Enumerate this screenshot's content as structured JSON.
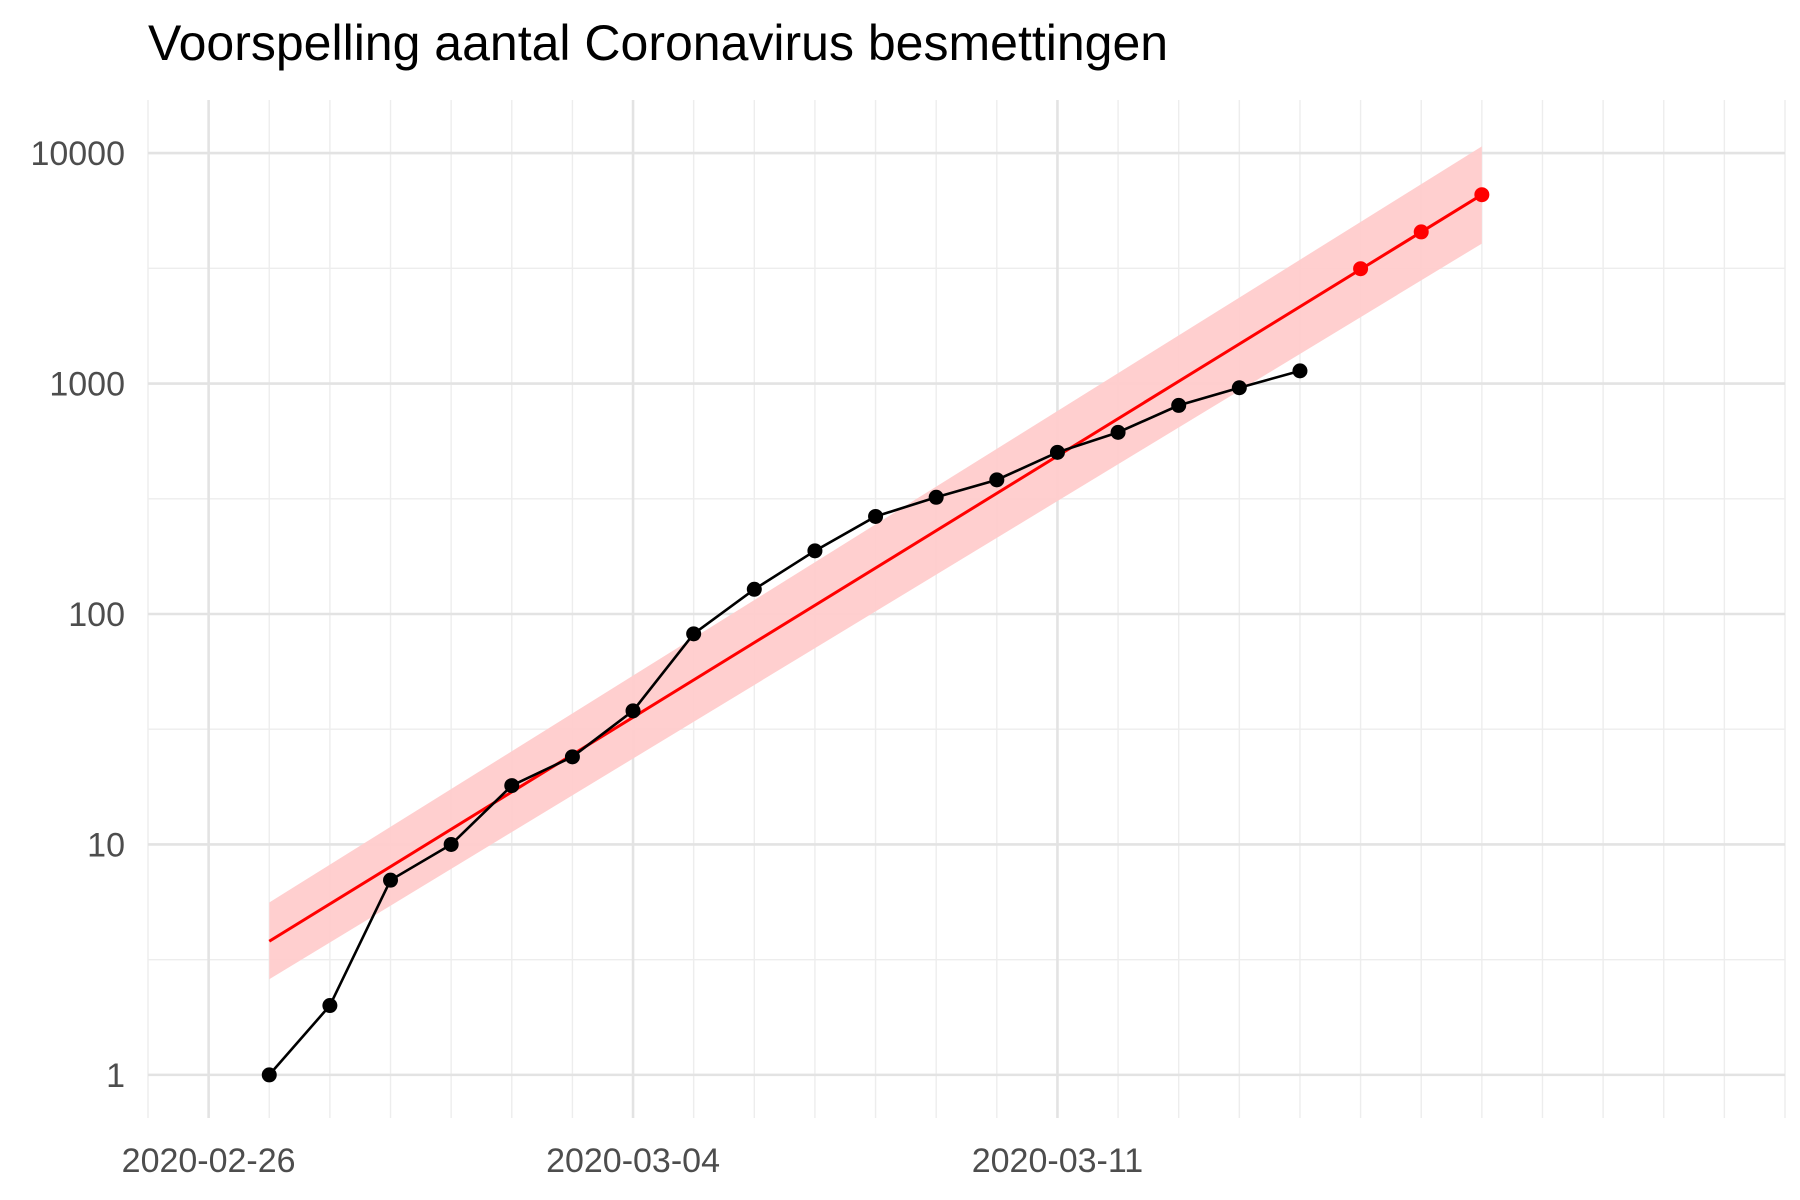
{
  "chart_data": {
    "type": "line",
    "title": "Voorspelling aantal Coronavirus besmettingen",
    "xlabel": "",
    "ylabel": "",
    "y_scale": "log10",
    "grid": true,
    "ylim": [
      0.65,
      17000
    ],
    "xlim": [
      "2020-02-25",
      "2020-03-23"
    ],
    "x_tick_labels": [
      "2020-02-26",
      "2020-03-04",
      "2020-03-11"
    ],
    "y_tick_labels": [
      "1",
      "10",
      "100",
      "1000",
      "10000"
    ],
    "y_ticks": [
      1,
      10,
      100,
      1000,
      10000
    ],
    "series": [
      {
        "color": "#000000",
        "x": [
          "2020-02-27",
          "2020-02-28",
          "2020-02-29",
          "2020-03-01",
          "2020-03-02",
          "2020-03-03",
          "2020-03-04",
          "2020-03-05",
          "2020-03-06",
          "2020-03-07",
          "2020-03-08",
          "2020-03-09",
          "2020-03-10",
          "2020-03-11",
          "2020-03-12",
          "2020-03-13",
          "2020-03-14",
          "2020-03-15"
        ],
        "values": [
          1,
          2,
          7,
          10,
          18,
          24,
          38,
          82,
          128,
          188,
          265,
          321,
          382,
          503,
          614,
          804,
          959,
          1135
        ]
      },
      {
        "color": "#ff0000",
        "x": [
          "2020-03-16",
          "2020-03-17",
          "2020-03-18"
        ],
        "values": [
          3150,
          4550,
          6600
        ]
      }
    ],
    "trend": {
      "color": "#ff0000",
      "band_color": "#ffcccc",
      "x": [
        "2020-02-27",
        "2020-03-18"
      ],
      "values": [
        3.8,
        6600
      ],
      "lower": [
        2.6,
        4050
      ],
      "upper": [
        5.6,
        10700
      ]
    }
  }
}
